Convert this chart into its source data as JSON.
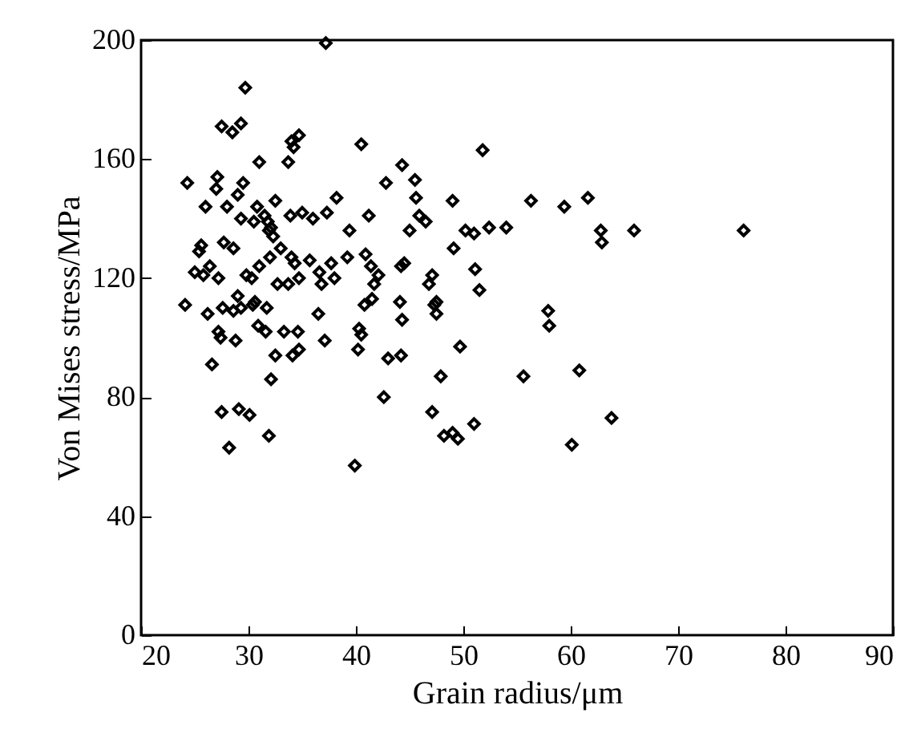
{
  "chart_data": {
    "type": "scatter",
    "xlabel": "Grain radius/μm",
    "ylabel": "Von Mises stress/MPa",
    "xlim": [
      20,
      90
    ],
    "ylim": [
      0,
      200
    ],
    "xticks": [
      20,
      30,
      40,
      50,
      60,
      70,
      80,
      90
    ],
    "yticks": [
      0,
      40,
      80,
      120,
      160,
      200
    ],
    "grid": false,
    "legend": false,
    "marker": "diamond",
    "series": [
      {
        "color": "#000000",
        "x": [
          37.2,
          29.7,
          27.5,
          28.5,
          29.3,
          31,
          33.7,
          34,
          34.7,
          34.2,
          40.5,
          44.3,
          51.8,
          42.8,
          24.3,
          27.1,
          27,
          28,
          26,
          29.5,
          29,
          35,
          30.8,
          32.5,
          33.9,
          36,
          37.3,
          38.2,
          41.2,
          31.5,
          31.8,
          32.1,
          32.3,
          31.9,
          30.5,
          29.3,
          27.7,
          25.6,
          25.4,
          26.4,
          25,
          28.6,
          27.2,
          29.8,
          30.3,
          31,
          32,
          33,
          34,
          34.3,
          32.7,
          33.7,
          34.7,
          30.4,
          29,
          30.6,
          31.7,
          30.9,
          29.3,
          28.6,
          27.6,
          27.2,
          27.4,
          28.8,
          31.6,
          33.3,
          34.6,
          32.5,
          34.7,
          26.2,
          24.1,
          25.8,
          26.6,
          27.5,
          29.1,
          30.1,
          28.2,
          31.9,
          32.1,
          34.1,
          36.5,
          35.7,
          36.6,
          37.1,
          38,
          39.4,
          36.8,
          37.7,
          39.2,
          40.3,
          40.5,
          40.2,
          40.8,
          41.5,
          41.7,
          40.9,
          41.4,
          42.1,
          42.6,
          39.9,
          43,
          44.2,
          44.1,
          44.2,
          44.5,
          45,
          45.6,
          45.9,
          46.5,
          44.3,
          46.8,
          47.1,
          47.5,
          47.5,
          47.3,
          47.9,
          47.1,
          48.2,
          49,
          49.5,
          49.7,
          51,
          49.1,
          50.2,
          51,
          51.1,
          51.5,
          52.4,
          54,
          55.6,
          56.3,
          57.9,
          58,
          59.4,
          60.1,
          60.8,
          61.6,
          62.8,
          62.9,
          63.8,
          65.9,
          76.1,
          49,
          45.5
        ],
        "values": [
          199,
          184,
          171,
          169,
          172,
          159,
          159,
          166,
          168,
          164,
          165,
          158,
          163,
          152,
          152,
          154,
          150,
          144,
          144,
          152,
          148,
          142,
          144,
          146,
          141,
          140,
          142,
          147,
          141,
          141,
          139,
          137,
          134,
          136,
          139,
          140,
          132,
          131,
          129,
          124,
          122,
          130,
          120,
          121,
          120,
          124,
          127,
          130,
          127,
          125,
          118,
          118,
          120,
          111,
          114,
          112,
          110,
          104,
          110,
          109,
          110,
          102,
          100,
          99,
          102,
          102,
          102,
          94,
          96,
          108,
          111,
          121,
          91,
          75,
          76,
          74,
          63,
          67,
          86,
          94,
          108,
          126,
          122,
          99,
          120,
          136,
          118,
          125,
          127,
          103,
          101,
          96,
          111,
          113,
          118,
          128,
          124,
          121,
          80,
          57,
          93,
          94,
          112,
          124,
          125,
          136,
          147,
          141,
          139,
          106,
          118,
          121,
          112,
          108,
          111,
          87,
          75,
          67,
          68,
          66,
          97,
          71,
          130,
          136,
          135,
          123,
          116,
          137,
          137,
          87,
          146,
          109,
          104,
          144,
          64,
          89,
          147,
          136,
          132,
          73,
          136,
          136,
          146,
          153
        ]
      }
    ]
  }
}
